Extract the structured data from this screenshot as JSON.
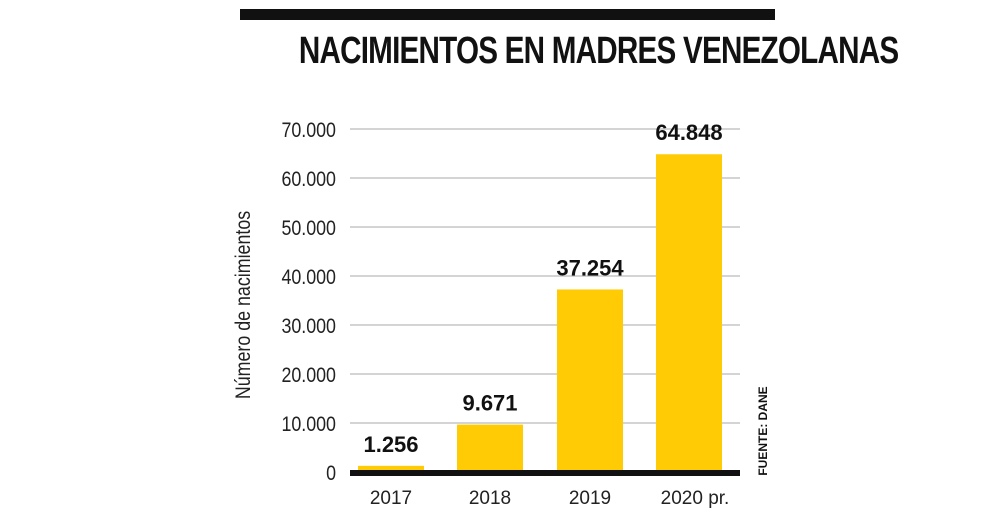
{
  "chart_data": {
    "type": "bar",
    "title": "NACIMIENTOS EN MADRES VENEZOLANAS",
    "ylabel": "Número de nacimientos",
    "xlabel": "",
    "categories": [
      "2017",
      "2018",
      "2019",
      "2020 pr."
    ],
    "values": [
      1256,
      9671,
      37254,
      64848
    ],
    "value_labels": [
      "1.256",
      "9.671",
      "37.254",
      "64.848"
    ],
    "yticks": [
      "0",
      "10.000",
      "20.000",
      "30.000",
      "40.000",
      "50.000",
      "60.000",
      "70.000"
    ],
    "ylim": [
      0,
      70000
    ],
    "grid": true,
    "source": "FUENTE: DANE",
    "colors": {
      "bar": "#FFCB05",
      "axis": "#111111",
      "grid": "#aaaaaa"
    }
  }
}
